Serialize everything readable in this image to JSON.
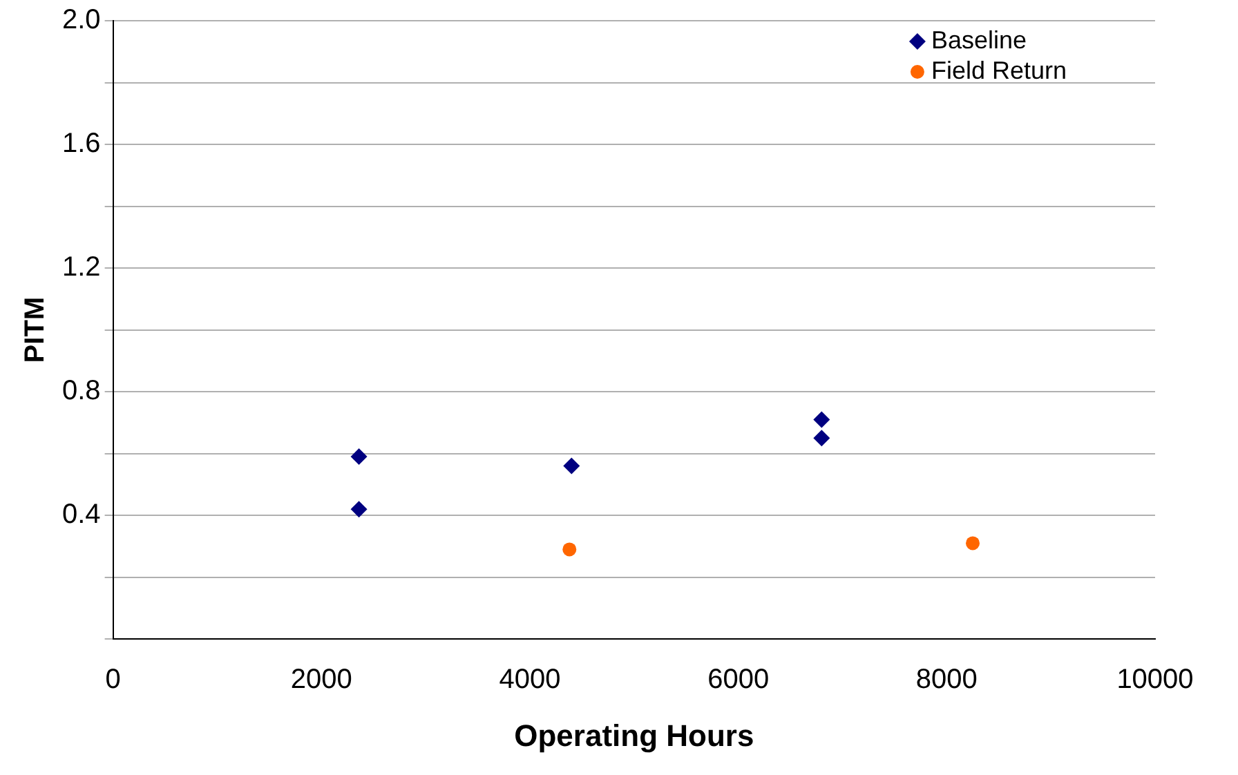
{
  "chart_data": {
    "type": "scatter",
    "xlabel": "Operating Hours",
    "ylabel": "PITM",
    "series": [
      {
        "name": "Baseline",
        "color": "#000080",
        "marker": "diamond",
        "x": [
          2360,
          2360,
          4400,
          6800,
          6800
        ],
        "values": [
          0.59,
          0.42,
          0.56,
          0.71,
          0.65
        ]
      },
      {
        "name": "Field Return",
        "color": "#ff6600",
        "marker": "circle",
        "x": [
          4380,
          8250
        ],
        "values": [
          0.29,
          0.31
        ]
      }
    ],
    "xlim": [
      0,
      10000
    ],
    "xticks": [
      0,
      2000,
      4000,
      6000,
      8000,
      10000
    ],
    "ylim": [
      0,
      2.0
    ],
    "yticks": [
      {
        "value": 0,
        "label": null
      },
      {
        "value": 0.2,
        "label": null
      },
      0.4,
      {
        "value": 0.6,
        "label": null
      },
      0.8,
      {
        "value": 1.0,
        "label": null
      },
      1.2,
      {
        "value": 1.4,
        "label": null
      },
      1.6,
      {
        "value": 1.8,
        "label": null
      },
      {
        "value": 2.0,
        "label": "2.0"
      }
    ],
    "grid": "y",
    "legend": "top right"
  }
}
